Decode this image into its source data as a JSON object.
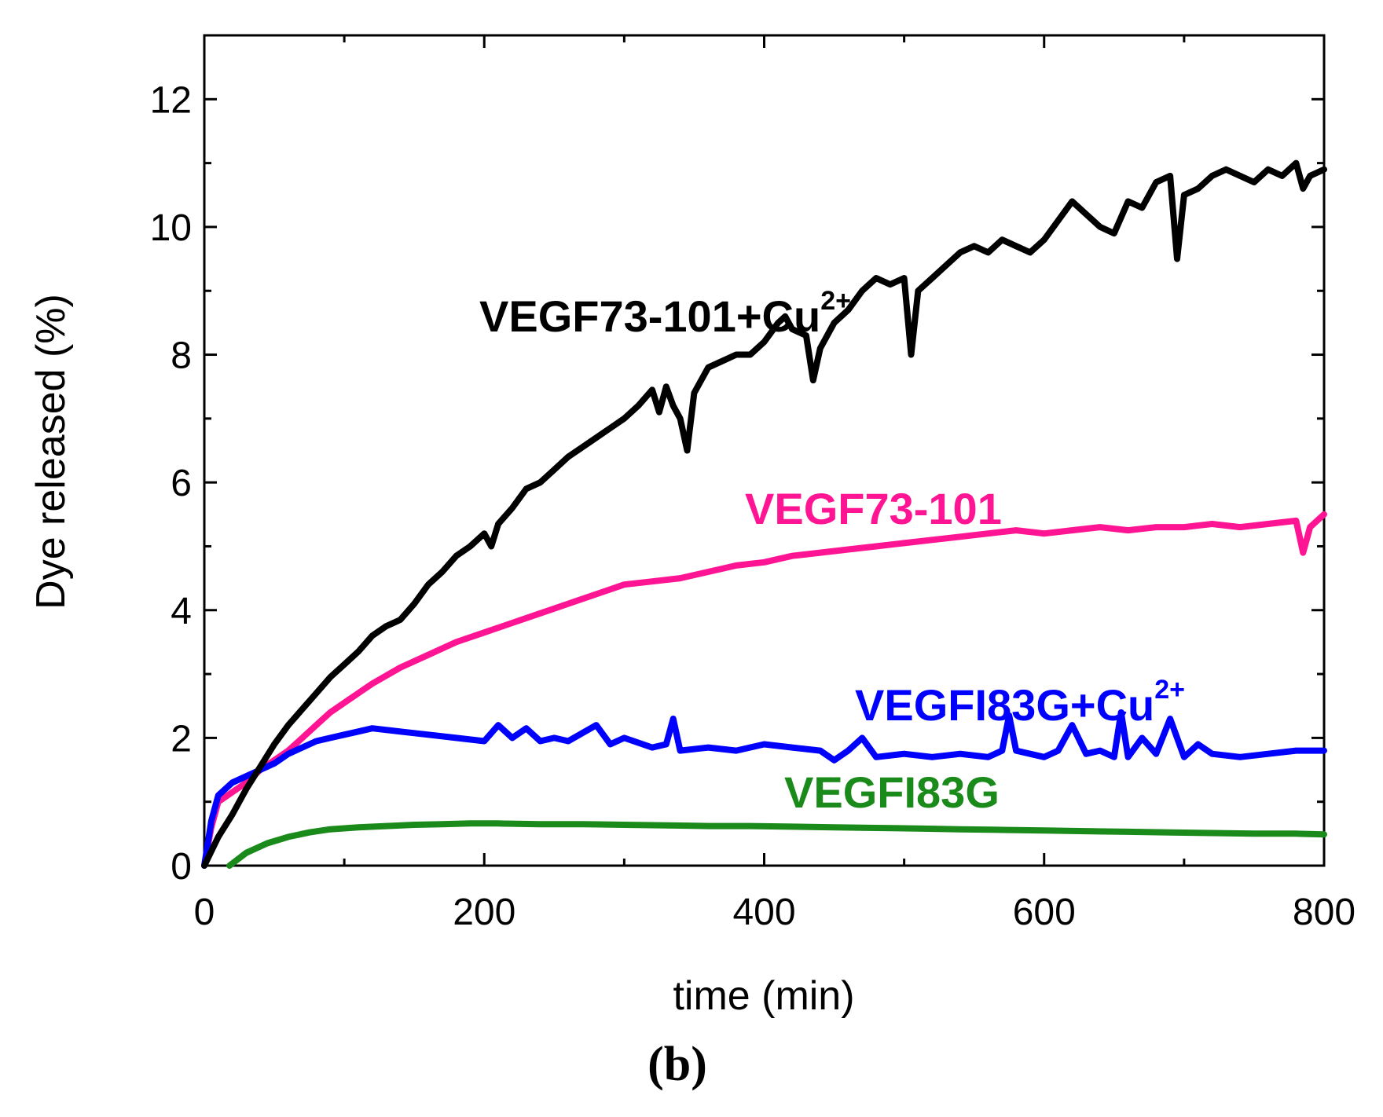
{
  "chart_data": {
    "type": "line",
    "xlabel": "time (min)",
    "ylabel": "Dye released (%)",
    "panel_label": "(b)",
    "xlim": [
      0,
      800
    ],
    "ylim": [
      0,
      13
    ],
    "xticks_major": [
      0,
      200,
      400,
      600,
      800
    ],
    "yticks_major": [
      0,
      2,
      4,
      6,
      8,
      10,
      12
    ],
    "grid": false,
    "legend": "inline labels",
    "series": [
      {
        "name": "VEGF73-101+Cu",
        "superscript": "2+",
        "color": "#000000",
        "x": [
          0,
          10,
          20,
          30,
          40,
          50,
          60,
          70,
          80,
          90,
          100,
          110,
          120,
          130,
          140,
          150,
          160,
          170,
          180,
          190,
          200,
          205,
          210,
          220,
          230,
          240,
          250,
          260,
          270,
          280,
          290,
          300,
          310,
          320,
          325,
          330,
          335,
          340,
          345,
          350,
          360,
          370,
          380,
          390,
          400,
          410,
          415,
          420,
          430,
          435,
          440,
          450,
          460,
          470,
          480,
          490,
          500,
          505,
          510,
          520,
          530,
          540,
          550,
          560,
          570,
          580,
          590,
          600,
          610,
          620,
          630,
          640,
          650,
          660,
          670,
          680,
          690,
          695,
          700,
          710,
          720,
          730,
          740,
          750,
          760,
          770,
          780,
          785,
          790,
          800
        ],
        "y": [
          0.0,
          0.45,
          0.8,
          1.2,
          1.55,
          1.9,
          2.2,
          2.45,
          2.7,
          2.95,
          3.15,
          3.35,
          3.6,
          3.75,
          3.85,
          4.1,
          4.4,
          4.6,
          4.85,
          5.0,
          5.2,
          5.0,
          5.35,
          5.6,
          5.9,
          6.0,
          6.2,
          6.4,
          6.55,
          6.7,
          6.85,
          7.0,
          7.2,
          7.45,
          7.1,
          7.5,
          7.2,
          7.0,
          6.5,
          7.4,
          7.8,
          7.9,
          8.0,
          8.0,
          8.2,
          8.5,
          8.6,
          8.4,
          8.3,
          7.6,
          8.1,
          8.5,
          8.7,
          9.0,
          9.2,
          9.1,
          9.2,
          8.0,
          9.0,
          9.2,
          9.4,
          9.6,
          9.7,
          9.6,
          9.8,
          9.7,
          9.6,
          9.8,
          10.1,
          10.4,
          10.2,
          10.0,
          9.9,
          10.4,
          10.3,
          10.7,
          10.8,
          9.5,
          10.5,
          10.6,
          10.8,
          10.9,
          10.8,
          10.7,
          10.9,
          10.8,
          11.0,
          10.6,
          10.8,
          10.9
        ]
      },
      {
        "name": "VEGF73-101",
        "color": "#ff1493",
        "x": [
          0,
          5,
          10,
          20,
          30,
          40,
          50,
          60,
          70,
          80,
          90,
          100,
          110,
          120,
          140,
          160,
          180,
          200,
          220,
          240,
          260,
          280,
          300,
          320,
          340,
          360,
          380,
          400,
          420,
          440,
          460,
          480,
          500,
          520,
          540,
          560,
          580,
          600,
          620,
          640,
          660,
          680,
          700,
          720,
          740,
          760,
          780,
          785,
          790,
          800
        ],
        "y": [
          0.0,
          0.6,
          1.0,
          1.15,
          1.3,
          1.5,
          1.65,
          1.8,
          2.0,
          2.2,
          2.4,
          2.55,
          2.7,
          2.85,
          3.1,
          3.3,
          3.5,
          3.65,
          3.8,
          3.95,
          4.1,
          4.25,
          4.4,
          4.45,
          4.5,
          4.6,
          4.7,
          4.75,
          4.85,
          4.9,
          4.95,
          5.0,
          5.05,
          5.1,
          5.15,
          5.2,
          5.25,
          5.2,
          5.25,
          5.3,
          5.25,
          5.3,
          5.3,
          5.35,
          5.3,
          5.35,
          5.4,
          4.9,
          5.3,
          5.5
        ]
      },
      {
        "name": "VEGFI83G+Cu",
        "superscript": "2+",
        "color": "#0000ff",
        "x": [
          0,
          5,
          10,
          20,
          30,
          40,
          50,
          60,
          70,
          80,
          90,
          100,
          110,
          120,
          140,
          160,
          180,
          200,
          210,
          220,
          230,
          240,
          250,
          260,
          280,
          290,
          300,
          320,
          330,
          335,
          340,
          360,
          380,
          400,
          420,
          440,
          450,
          460,
          470,
          480,
          500,
          520,
          540,
          560,
          570,
          575,
          580,
          590,
          600,
          610,
          620,
          630,
          640,
          650,
          655,
          660,
          670,
          680,
          690,
          700,
          710,
          720,
          740,
          760,
          780,
          800
        ],
        "y": [
          0.0,
          0.7,
          1.1,
          1.3,
          1.4,
          1.5,
          1.6,
          1.75,
          1.85,
          1.95,
          2.0,
          2.05,
          2.1,
          2.15,
          2.1,
          2.05,
          2.0,
          1.95,
          2.2,
          2.0,
          2.15,
          1.95,
          2.0,
          1.95,
          2.2,
          1.9,
          2.0,
          1.85,
          1.9,
          2.3,
          1.8,
          1.85,
          1.8,
          1.9,
          1.85,
          1.8,
          1.65,
          1.8,
          2.0,
          1.7,
          1.75,
          1.7,
          1.75,
          1.7,
          1.8,
          2.35,
          1.8,
          1.75,
          1.7,
          1.8,
          2.2,
          1.75,
          1.8,
          1.7,
          2.4,
          1.7,
          2.0,
          1.75,
          2.3,
          1.7,
          1.9,
          1.75,
          1.7,
          1.75,
          1.8,
          1.8
        ]
      },
      {
        "name": "VEGFI83G",
        "color": "#1a8a1a",
        "x": [
          18,
          30,
          45,
          60,
          75,
          90,
          110,
          130,
          150,
          170,
          190,
          210,
          240,
          270,
          300,
          330,
          360,
          390,
          420,
          450,
          480,
          510,
          540,
          570,
          600,
          630,
          660,
          690,
          720,
          750,
          780,
          800
        ],
        "y": [
          0.0,
          0.2,
          0.35,
          0.45,
          0.52,
          0.57,
          0.6,
          0.62,
          0.64,
          0.65,
          0.66,
          0.66,
          0.65,
          0.65,
          0.64,
          0.63,
          0.62,
          0.62,
          0.61,
          0.6,
          0.59,
          0.58,
          0.57,
          0.56,
          0.55,
          0.54,
          0.53,
          0.52,
          0.51,
          0.5,
          0.5,
          0.49
        ]
      }
    ]
  }
}
